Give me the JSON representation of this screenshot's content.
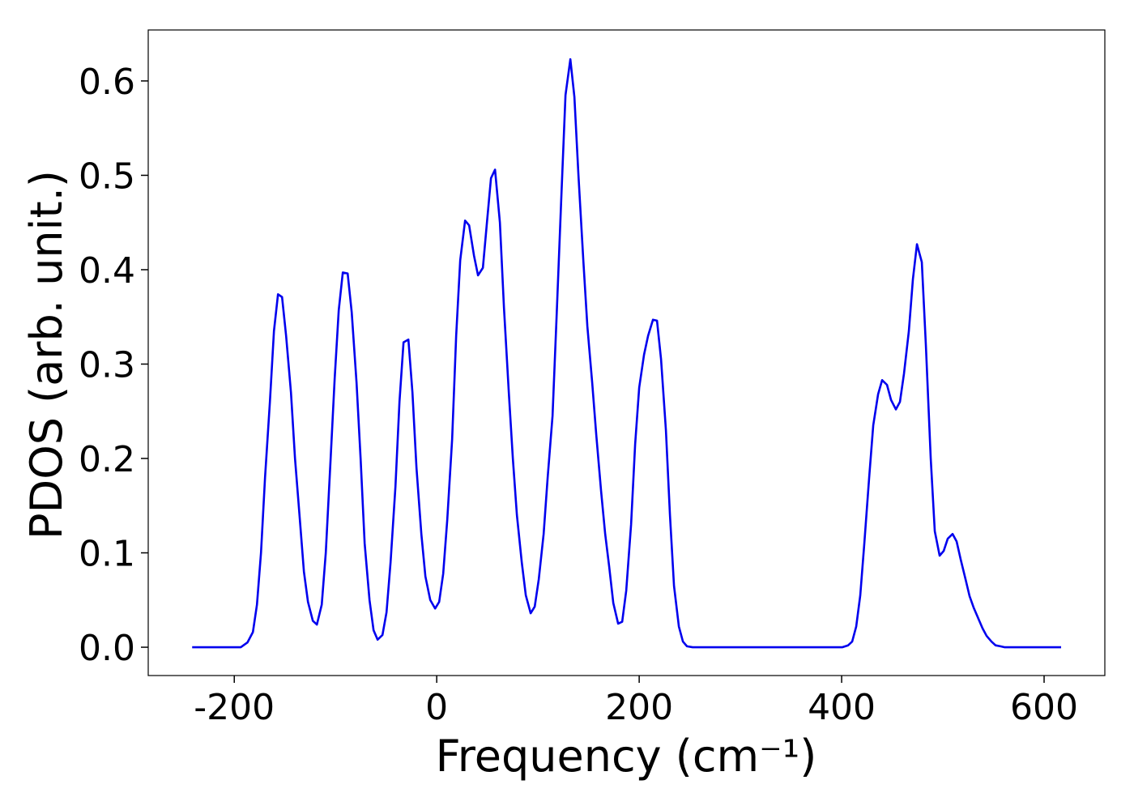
{
  "chart_data": {
    "type": "line",
    "x_label": "Frequency (cm⁻¹)",
    "y_label": "PDOS (arb. unit.)",
    "color": "#0000ee",
    "x": [
      -241.6,
      -193.6,
      -187,
      -181.6,
      -177.6,
      -173.6,
      -169.6,
      -164.8,
      -160.8,
      -156.8,
      -152.8,
      -148.8,
      -144,
      -140,
      -135.2,
      -131.2,
      -127.2,
      -122.4,
      -118.4,
      -113.6,
      -109.6,
      -104.8,
      -100.8,
      -96.8,
      -92.8,
      -88,
      -84,
      -79.2,
      -75.2,
      -71.2,
      -66.4,
      -62.4,
      -58.4,
      -53.6,
      -49.6,
      -45.6,
      -40.8,
      -36.8,
      -32.8,
      -28,
      -24,
      -20,
      -15.2,
      -11.2,
      -6.4,
      -1.6,
      2.4,
      6.4,
      10.4,
      15.2,
      19.2,
      23.2,
      28,
      32,
      36.8,
      40.8,
      45.6,
      49.6,
      53.6,
      57.6,
      62.4,
      66.4,
      71.2,
      75.2,
      79.2,
      84,
      88,
      92.8,
      96.8,
      100.8,
      105.6,
      109.6,
      114.4,
      118.4,
      123.2,
      127.2,
      132,
      136,
      140,
      144.8,
      148.8,
      153.6,
      157.6,
      162.4,
      166.4,
      170.4,
      174.4,
      179.2,
      183.2,
      187.2,
      192,
      196,
      200,
      204.8,
      208.8,
      213.6,
      217.6,
      221.6,
      226.4,
      230.4,
      234.4,
      239.2,
      243.2,
      247.2,
      252.8,
      400.8,
      406.4,
      410.4,
      414.4,
      418.4,
      422.4,
      427.2,
      431.2,
      436,
      440,
      444.8,
      448.8,
      453.6,
      457.6,
      461.6,
      466.4,
      470.4,
      474.4,
      479.2,
      483.2,
      488,
      492,
      496.8,
      500.8,
      504.8,
      509.6,
      513.6,
      517.6,
      522.4,
      526.4,
      530.4,
      535.2,
      539.2,
      543.2,
      548,
      552,
      556.8,
      560.8,
      616.8
    ],
    "values": [
      0,
      0,
      0.005,
      0.016,
      0.045,
      0.1,
      0.18,
      0.26,
      0.335,
      0.374,
      0.371,
      0.33,
      0.27,
      0.2,
      0.135,
      0.08,
      0.048,
      0.028,
      0.024,
      0.045,
      0.1,
      0.2,
      0.285,
      0.357,
      0.397,
      0.396,
      0.355,
      0.28,
      0.2,
      0.11,
      0.05,
      0.018,
      0.008,
      0.013,
      0.037,
      0.09,
      0.17,
      0.26,
      0.323,
      0.326,
      0.27,
      0.19,
      0.12,
      0.075,
      0.05,
      0.041,
      0.048,
      0.078,
      0.135,
      0.22,
      0.33,
      0.41,
      0.452,
      0.447,
      0.415,
      0.394,
      0.402,
      0.45,
      0.497,
      0.506,
      0.45,
      0.36,
      0.27,
      0.2,
      0.14,
      0.09,
      0.055,
      0.036,
      0.043,
      0.072,
      0.12,
      0.18,
      0.245,
      0.35,
      0.48,
      0.585,
      0.623,
      0.583,
      0.5,
      0.41,
      0.34,
      0.28,
      0.225,
      0.165,
      0.12,
      0.085,
      0.047,
      0.025,
      0.027,
      0.06,
      0.13,
      0.215,
      0.275,
      0.31,
      0.33,
      0.347,
      0.346,
      0.305,
      0.23,
      0.14,
      0.065,
      0.022,
      0.006,
      0.001,
      0,
      0,
      0.002,
      0.006,
      0.022,
      0.055,
      0.11,
      0.18,
      0.235,
      0.268,
      0.283,
      0.278,
      0.262,
      0.252,
      0.26,
      0.29,
      0.335,
      0.39,
      0.427,
      0.408,
      0.32,
      0.2,
      0.123,
      0.097,
      0.102,
      0.115,
      0.12,
      0.112,
      0.093,
      0.072,
      0.054,
      0.042,
      0.03,
      0.02,
      0.012,
      0.006,
      0.002,
      0.001,
      0,
      0
    ],
    "xlim": [
      -285,
      660
    ],
    "ylim": [
      -0.03,
      0.654
    ],
    "xticks": [
      -200,
      0,
      200,
      400,
      600
    ],
    "yticks": [
      {
        "value": 0,
        "label": "0.0"
      },
      0.1,
      0.2,
      0.3,
      0.4,
      0.5,
      0.6
    ]
  }
}
